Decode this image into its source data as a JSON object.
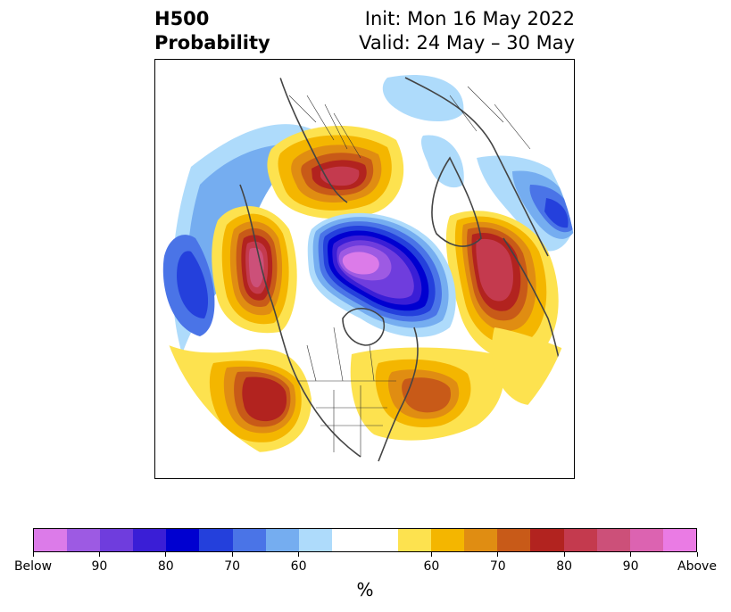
{
  "title": {
    "left_line1": "H500",
    "left_line2": "Probability",
    "right_line1": "Init: Mon 16 May 2022",
    "right_line2": "Valid: 24 May – 30 May"
  },
  "colorbar": {
    "colors": [
      "#dc7be9",
      "#9d5ae3",
      "#6f3ddd",
      "#3a1ed6",
      "#0000d0",
      "#2440dc",
      "#4a74e7",
      "#75adf0",
      "#aedbfb",
      "#ffffff",
      "#ffffff",
      "#fde24f",
      "#f4b600",
      "#e08d12",
      "#c85a18",
      "#b2231f",
      "#c43a4e",
      "#cc5079",
      "#dc63b1",
      "#ea7be4"
    ],
    "tick_labels": [
      "Below",
      "90",
      "80",
      "70",
      "60",
      "60",
      "70",
      "80",
      "90",
      "Above"
    ],
    "units": "%"
  },
  "map": {
    "projection": "north-polar-stereographic",
    "field": "500 hPa height probability",
    "anomalies": [
      {
        "region": "arctic-canada",
        "sign": "below",
        "peak": "Below"
      },
      {
        "region": "nw-canada",
        "sign": "above",
        "peak": "90"
      },
      {
        "region": "greenland",
        "sign": "above",
        "peak": "90"
      },
      {
        "region": "alaska-bering",
        "sign": "above",
        "peak": "90"
      },
      {
        "region": "western-us",
        "sign": "above",
        "peak": "80"
      },
      {
        "region": "eastern-us",
        "sign": "above",
        "peak": "70"
      },
      {
        "region": "north-pacific",
        "sign": "below",
        "peak": "80"
      },
      {
        "region": "east-siberia",
        "sign": "below",
        "peak": "80"
      }
    ]
  }
}
